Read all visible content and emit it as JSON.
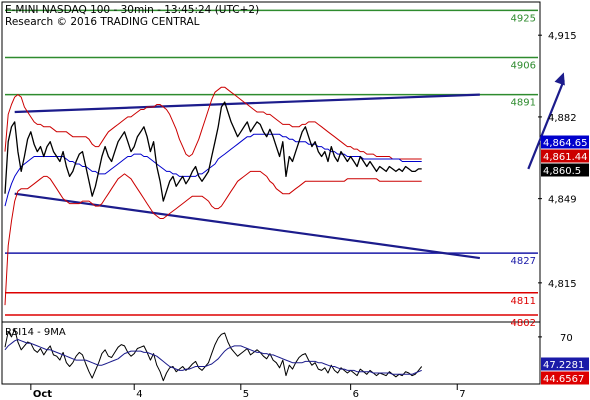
{
  "header": {
    "title": "E-MINI NASDAQ 100 - 30min - 13:45:24 (UTC+2)",
    "credit": "Research © 2016 TRADING CENTRAL"
  },
  "colors": {
    "price": "#000000",
    "bollinger": "#cc0000",
    "moving_average": "#0000cc",
    "resistance": "#2e8b2e",
    "support": "#1a1aa8",
    "stop": "#dd0000",
    "trend": "#1c1c8c",
    "rsi": "#000000",
    "rsi_ma": "#1c1c8c",
    "axis_label_blue": "#1a1aa8",
    "last_price_box": "#000000"
  },
  "chart_data": [
    {
      "type": "line",
      "panel": "price",
      "x_ticks": [
        {
          "label": "Oct",
          "bar": 8
        },
        {
          "label": "4",
          "bar": 40
        },
        {
          "label": "5",
          "bar": 73
        },
        {
          "label": "6",
          "bar": 107
        },
        {
          "label": "7",
          "bar": 140
        }
      ],
      "y_ticks": [
        "4,915",
        "4,882",
        "4,849",
        "4,815"
      ],
      "y_tick_values": [
        4915,
        4882,
        4849,
        4815
      ],
      "ylim": [
        4800,
        4928
      ],
      "xlim": [
        0,
        165
      ],
      "series": [
        {
          "role": "price",
          "values": [
            4851,
            4872,
            4878,
            4880,
            4868,
            4860,
            4866,
            4873,
            4876,
            4871,
            4868,
            4870,
            4866,
            4870,
            4872,
            4868,
            4866,
            4864,
            4868,
            4862,
            4858,
            4860,
            4864,
            4867,
            4868,
            4862,
            4856,
            4850,
            4854,
            4860,
            4866,
            4870,
            4866,
            4864,
            4868,
            4872,
            4874,
            4876,
            4872,
            4868,
            4870,
            4874,
            4876,
            4878,
            4874,
            4868,
            4872,
            4862,
            4856,
            4848,
            4852,
            4856,
            4858,
            4854,
            4856,
            4858,
            4855,
            4857,
            4860,
            4862,
            4858,
            4856,
            4858,
            4860,
            4866,
            4872,
            4878,
            4886,
            4888,
            4884,
            4880,
            4877,
            4874,
            4876,
            4878,
            4880,
            4876,
            4878,
            4880,
            4879,
            4876,
            4874,
            4877,
            4874,
            4870,
            4866,
            4872,
            4858,
            4866,
            4864,
            4868,
            4872,
            4876,
            4878,
            4874,
            4870,
            4872,
            4868,
            4866,
            4868,
            4864,
            4870,
            4866,
            4864,
            4868,
            4866,
            4864,
            4866,
            4864,
            4862,
            4866,
            4864,
            4862,
            4864,
            4862,
            4860,
            4862,
            4861,
            4860,
            4862,
            4861,
            4860,
            4861,
            4860,
            4862,
            4861,
            4860,
            4860,
            4861,
            4861
          ]
        },
        {
          "role": "upper_band",
          "values": [
            4868,
            4883,
            4887,
            4890,
            4891,
            4890,
            4886,
            4884,
            4882,
            4880,
            4879,
            4879,
            4878,
            4878,
            4878,
            4877,
            4876,
            4876,
            4876,
            4876,
            4875,
            4874,
            4874,
            4874,
            4874,
            4874,
            4873,
            4871,
            4870,
            4870,
            4872,
            4874,
            4876,
            4877,
            4878,
            4879,
            4880,
            4881,
            4882,
            4882,
            4883,
            4884,
            4885,
            4885,
            4886,
            4886,
            4886,
            4887,
            4887,
            4886,
            4885,
            4883,
            4880,
            4877,
            4873,
            4870,
            4867,
            4866,
            4867,
            4870,
            4873,
            4877,
            4881,
            4885,
            4889,
            4892,
            4893,
            4894,
            4894,
            4893,
            4892,
            4891,
            4890,
            4889,
            4888,
            4887,
            4886,
            4885,
            4884,
            4884,
            4884,
            4883,
            4883,
            4882,
            4881,
            4880,
            4879,
            4879,
            4879,
            4878,
            4878,
            4878,
            4879,
            4879,
            4880,
            4880,
            4880,
            4879,
            4878,
            4877,
            4876,
            4875,
            4874,
            4873,
            4872,
            4871,
            4870,
            4870,
            4869,
            4869,
            4868,
            4868,
            4867,
            4867,
            4867,
            4866,
            4866,
            4866,
            4866,
            4866,
            4865,
            4865,
            4865,
            4865,
            4865,
            4865,
            4865,
            4865,
            4865,
            4865
          ]
        },
        {
          "role": "lower_band",
          "values": [
            4806,
            4830,
            4840,
            4848,
            4852,
            4853,
            4853,
            4853,
            4854,
            4855,
            4856,
            4857,
            4858,
            4858,
            4857,
            4855,
            4853,
            4851,
            4849,
            4848,
            4847,
            4847,
            4847,
            4847,
            4848,
            4848,
            4848,
            4847,
            4846,
            4846,
            4847,
            4849,
            4851,
            4853,
            4855,
            4857,
            4858,
            4859,
            4858,
            4857,
            4855,
            4853,
            4851,
            4849,
            4847,
            4845,
            4843,
            4842,
            4841,
            4841,
            4842,
            4843,
            4844,
            4845,
            4846,
            4847,
            4848,
            4849,
            4850,
            4850,
            4850,
            4850,
            4849,
            4848,
            4846,
            4845,
            4845,
            4846,
            4848,
            4850,
            4852,
            4854,
            4856,
            4857,
            4858,
            4859,
            4860,
            4860,
            4860,
            4860,
            4859,
            4858,
            4856,
            4855,
            4853,
            4852,
            4851,
            4851,
            4851,
            4852,
            4853,
            4854,
            4855,
            4856,
            4856,
            4856,
            4856,
            4856,
            4856,
            4856,
            4856,
            4856,
            4856,
            4856,
            4856,
            4856,
            4857,
            4857,
            4857,
            4857,
            4857,
            4857,
            4857,
            4857,
            4857,
            4857,
            4856,
            4856,
            4856,
            4856,
            4856,
            4856,
            4856,
            4856,
            4856,
            4856,
            4856,
            4856,
            4856,
            4856
          ]
        },
        {
          "role": "moving_average",
          "values": [
            4846,
            4851,
            4855,
            4858,
            4860,
            4862,
            4863,
            4864,
            4865,
            4866,
            4866,
            4866,
            4866,
            4866,
            4866,
            4866,
            4866,
            4866,
            4866,
            4865,
            4864,
            4864,
            4863,
            4863,
            4862,
            4862,
            4861,
            4860,
            4860,
            4859,
            4859,
            4859,
            4860,
            4861,
            4862,
            4863,
            4864,
            4865,
            4866,
            4866,
            4867,
            4867,
            4867,
            4866,
            4866,
            4865,
            4864,
            4863,
            4862,
            4861,
            4860,
            4860,
            4859,
            4859,
            4858,
            4858,
            4858,
            4858,
            4858,
            4858,
            4859,
            4859,
            4860,
            4861,
            4862,
            4863,
            4865,
            4866,
            4867,
            4868,
            4869,
            4870,
            4871,
            4872,
            4873,
            4874,
            4874,
            4875,
            4875,
            4875,
            4875,
            4875,
            4875,
            4875,
            4875,
            4875,
            4874,
            4874,
            4873,
            4873,
            4872,
            4872,
            4872,
            4872,
            4871,
            4871,
            4871,
            4870,
            4870,
            4869,
            4869,
            4868,
            4868,
            4867,
            4867,
            4867,
            4866,
            4866,
            4866,
            4866,
            4866,
            4865,
            4865,
            4865,
            4865,
            4865,
            4865,
            4865,
            4865,
            4865,
            4865,
            4865,
            4865,
            4864,
            4864,
            4864,
            4864,
            4864,
            4864,
            4864
          ]
        }
      ],
      "horizontal_levels": [
        {
          "value": 4925,
          "label": "4925",
          "role": "resistance"
        },
        {
          "value": 4906,
          "label": "4906",
          "role": "resistance"
        },
        {
          "value": 4891,
          "label": "4891",
          "role": "resistance"
        },
        {
          "value": 4827,
          "label": "4827",
          "role": "support"
        },
        {
          "value": 4811,
          "label": "4811",
          "role": "stop"
        },
        {
          "value": 4802,
          "label": "4802",
          "role": "stop"
        }
      ],
      "trendlines": [
        {
          "name": "upper",
          "from": {
            "bar": 3,
            "value": 4884
          },
          "to": {
            "bar": 147,
            "value": 4891
          }
        },
        {
          "name": "lower",
          "from": {
            "bar": 3,
            "value": 4851
          },
          "to": {
            "bar": 147,
            "value": 4825
          }
        }
      ],
      "projection_arrow": {
        "from": {
          "bar": 162,
          "value": 4861
        },
        "to": {
          "bar": 173,
          "value": 4900
        }
      },
      "price_badges": [
        {
          "label": "4,864.65",
          "value": 4864.65,
          "role": "moving_average"
        },
        {
          "label": "4,861.44",
          "value": 4861.44,
          "role": "bollinger"
        },
        {
          "label": "4,860.5",
          "value": 4860.5,
          "role": "last_price"
        }
      ]
    },
    {
      "type": "line",
      "panel": "rsi",
      "title": "RSI14 - 9MA",
      "ylim": [
        35,
        80
      ],
      "xlim": [
        0,
        165
      ],
      "y_ticks": [
        "70"
      ],
      "y_tick_values": [
        70
      ],
      "series": [
        {
          "role": "rsi",
          "values": [
            62,
            74,
            70,
            76,
            66,
            60,
            63,
            66,
            65,
            60,
            58,
            61,
            56,
            60,
            63,
            56,
            55,
            52,
            58,
            50,
            47,
            50,
            55,
            58,
            56,
            49,
            43,
            38,
            44,
            50,
            57,
            60,
            55,
            54,
            58,
            62,
            64,
            63,
            58,
            55,
            57,
            61,
            62,
            63,
            58,
            52,
            57,
            48,
            43,
            36,
            42,
            46,
            47,
            43,
            45,
            47,
            44,
            46,
            49,
            51,
            46,
            44,
            47,
            50,
            57,
            64,
            69,
            72,
            73,
            66,
            61,
            58,
            55,
            57,
            59,
            61,
            56,
            58,
            60,
            58,
            55,
            53,
            57,
            52,
            50,
            46,
            52,
            40,
            48,
            45,
            50,
            54,
            56,
            57,
            52,
            48,
            50,
            45,
            44,
            46,
            42,
            48,
            44,
            42,
            46,
            44,
            42,
            44,
            42,
            40,
            45,
            43,
            41,
            44,
            42,
            40,
            42,
            41,
            40,
            43,
            41,
            39,
            41,
            40,
            43,
            42,
            40,
            41,
            44,
            47
          ]
        },
        {
          "role": "rsi_ma",
          "values": [
            60,
            63,
            65,
            67,
            68,
            67,
            66,
            65,
            65,
            64,
            63,
            62,
            61,
            60,
            60,
            59,
            58,
            57,
            56,
            55,
            54,
            53,
            52,
            52,
            52,
            52,
            51,
            50,
            49,
            48,
            48,
            49,
            50,
            51,
            52,
            53,
            55,
            57,
            58,
            59,
            59,
            59,
            59,
            58,
            58,
            57,
            56,
            55,
            53,
            51,
            49,
            47,
            46,
            45,
            44,
            44,
            45,
            45,
            46,
            47,
            47,
            47,
            47,
            48,
            49,
            51,
            53,
            56,
            59,
            61,
            62,
            63,
            63,
            63,
            62,
            61,
            60,
            59,
            58,
            58,
            57,
            57,
            56,
            56,
            55,
            54,
            53,
            52,
            51,
            50,
            50,
            50,
            50,
            51,
            51,
            51,
            51,
            50,
            50,
            49,
            48,
            47,
            47,
            46,
            45,
            45,
            44,
            44,
            44,
            43,
            43,
            43,
            43,
            43,
            42,
            42,
            42,
            42,
            42,
            42,
            41,
            41,
            41,
            41,
            41,
            41,
            41,
            42,
            43,
            44
          ]
        }
      ],
      "badges": [
        {
          "label": "47.2281",
          "value": 47.2281,
          "role": "rsi"
        },
        {
          "label": "44.6567",
          "value": 44.6567,
          "role": "rsi_ma"
        }
      ]
    }
  ]
}
